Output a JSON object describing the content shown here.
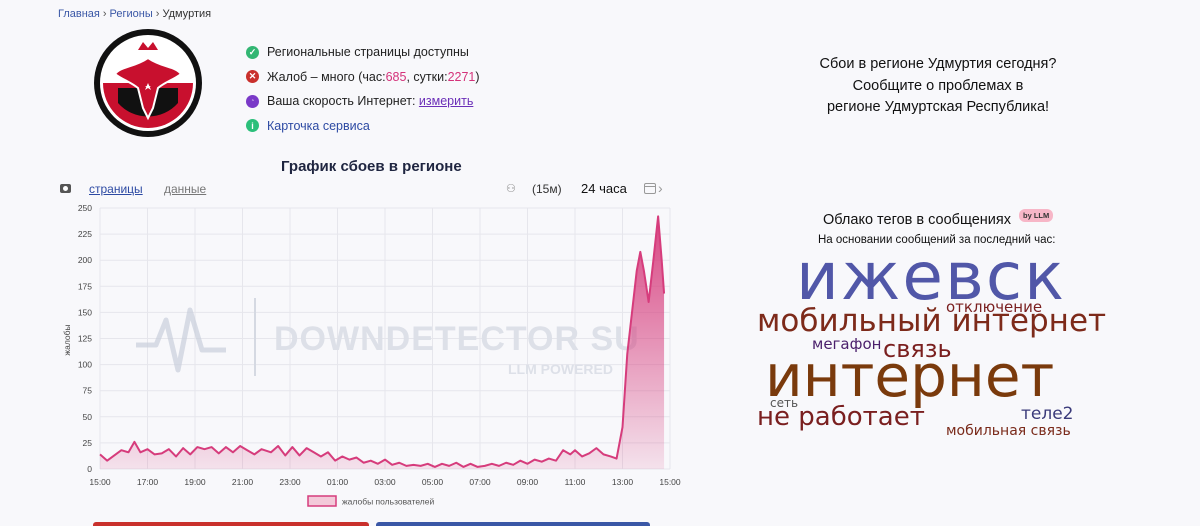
{
  "breadcrumb": {
    "home": "Главная",
    "regions": "Регионы",
    "current": "Удмуртия",
    "sep": "›"
  },
  "status": {
    "pages": "Региональные страницы доступны",
    "complaints_prefix": "Жалоб – много (час: ",
    "complaints_hour": "685",
    "complaints_mid": ", сутки: ",
    "complaints_day": "2271",
    "complaints_suffix": ")",
    "speed_text": "Ваша скорость Интернет: ",
    "speed_link": "измерить",
    "service_card": "Карточка сервиса"
  },
  "chart_toolbar": {
    "tab_pages": "страницы",
    "tab_data": "данные",
    "interval": "(15м)",
    "period": "24 часа"
  },
  "promo": {
    "line1": "Сбои в регионе Удмуртия сегодня?",
    "line2": "Сообщите о проблемах в",
    "line3": "регионе Удмуртская Республика!"
  },
  "cloud": {
    "title": "Облако тегов в сообщениях",
    "badge": "by LLM",
    "subtitle": "На основании сообщений за последний час:",
    "tags": [
      {
        "text": "ижевск",
        "color": "#5157a8"
      },
      {
        "text": "отключение",
        "color": "#7a1f1f"
      },
      {
        "text": "мобильный интернет",
        "color": "#7d2a1a"
      },
      {
        "text": "мегафон",
        "color": "#4a1f6b"
      },
      {
        "text": "связь",
        "color": "#7a1f1f"
      },
      {
        "text": "интернет",
        "color": "#7a3a0c"
      },
      {
        "text": "сеть",
        "color": "#555555"
      },
      {
        "text": "не работает",
        "color": "#7a1f1f"
      },
      {
        "text": "теле2",
        "color": "#3a3a7a"
      },
      {
        "text": "мобильная связь",
        "color": "#7a2a1a"
      }
    ]
  },
  "chart_data": {
    "type": "area",
    "title": "График сбоев в регионе",
    "ylabel": "жалобы",
    "legend": "жалобы пользователей",
    "legend_position": "bottom",
    "watermark_main": "DOWNDETECTOR SU",
    "watermark_sub": "LLM POWERED",
    "grid": true,
    "color": "#d63c7c",
    "ylim": [
      0,
      250
    ],
    "yticks": [
      0,
      25,
      50,
      75,
      100,
      125,
      150,
      175,
      200,
      225,
      250
    ],
    "xticks": [
      "15:00",
      "17:00",
      "19:00",
      "21:00",
      "23:00",
      "01:00",
      "03:00",
      "05:00",
      "07:00",
      "09:00",
      "11:00",
      "13:00",
      "15:00"
    ],
    "x_span_hours": 24,
    "values": [
      [
        0,
        14
      ],
      [
        0.3,
        8
      ],
      [
        0.6,
        13
      ],
      [
        0.9,
        18
      ],
      [
        1.2,
        16
      ],
      [
        1.45,
        26
      ],
      [
        1.7,
        16
      ],
      [
        2.0,
        19
      ],
      [
        2.3,
        14
      ],
      [
        2.6,
        15
      ],
      [
        2.9,
        19
      ],
      [
        3.2,
        12
      ],
      [
        3.5,
        20
      ],
      [
        3.8,
        14
      ],
      [
        4.1,
        21
      ],
      [
        4.4,
        19
      ],
      [
        4.7,
        21
      ],
      [
        5.0,
        15
      ],
      [
        5.3,
        21
      ],
      [
        5.6,
        16
      ],
      [
        5.9,
        22
      ],
      [
        6.2,
        18
      ],
      [
        6.5,
        14
      ],
      [
        6.8,
        19
      ],
      [
        7.2,
        16
      ],
      [
        7.5,
        22
      ],
      [
        7.8,
        13
      ],
      [
        8.1,
        21
      ],
      [
        8.4,
        13
      ],
      [
        8.7,
        20
      ],
      [
        9.0,
        16
      ],
      [
        9.3,
        12
      ],
      [
        9.6,
        16
      ],
      [
        9.9,
        8
      ],
      [
        10.2,
        12
      ],
      [
        10.5,
        9
      ],
      [
        10.8,
        11
      ],
      [
        11.1,
        6
      ],
      [
        11.4,
        8
      ],
      [
        11.7,
        5
      ],
      [
        12.0,
        9
      ],
      [
        12.3,
        4
      ],
      [
        12.6,
        6
      ],
      [
        12.9,
        3
      ],
      [
        13.2,
        4
      ],
      [
        13.5,
        3
      ],
      [
        13.8,
        5
      ],
      [
        14.1,
        2
      ],
      [
        14.4,
        5
      ],
      [
        14.7,
        3
      ],
      [
        15.0,
        6
      ],
      [
        15.3,
        2
      ],
      [
        15.6,
        5
      ],
      [
        15.9,
        2
      ],
      [
        16.2,
        3
      ],
      [
        16.5,
        5
      ],
      [
        16.8,
        3
      ],
      [
        17.1,
        6
      ],
      [
        17.4,
        4
      ],
      [
        17.7,
        8
      ],
      [
        18.0,
        5
      ],
      [
        18.3,
        9
      ],
      [
        18.6,
        7
      ],
      [
        18.9,
        10
      ],
      [
        19.2,
        8
      ],
      [
        19.5,
        18
      ],
      [
        19.8,
        14
      ],
      [
        20.0,
        18
      ],
      [
        20.3,
        12
      ],
      [
        20.6,
        15
      ],
      [
        20.9,
        20
      ],
      [
        21.2,
        14
      ],
      [
        21.5,
        12
      ],
      [
        21.75,
        10
      ],
      [
        22.0,
        40
      ],
      [
        22.2,
        110
      ],
      [
        22.4,
        150
      ],
      [
        22.6,
        190
      ],
      [
        22.75,
        208
      ],
      [
        22.9,
        190
      ],
      [
        23.1,
        160
      ],
      [
        23.3,
        200
      ],
      [
        23.5,
        242
      ],
      [
        23.65,
        200
      ],
      [
        23.75,
        168
      ]
    ]
  }
}
